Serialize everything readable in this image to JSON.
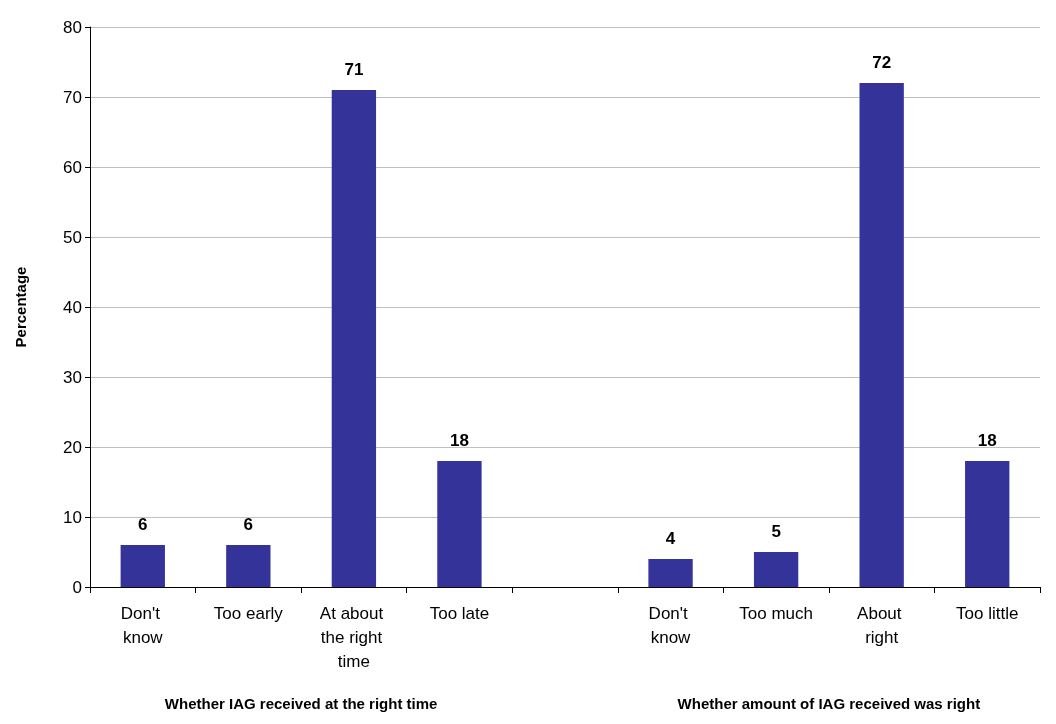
{
  "chart_data": {
    "type": "bar",
    "ylabel": "Percentage",
    "categories": [
      "Don't know",
      "Too early",
      "At about the right time",
      "Too late",
      null,
      "Don't know",
      "Too much",
      "About right",
      "Too little"
    ],
    "values": [
      6,
      6,
      71,
      18,
      null,
      4,
      5,
      72,
      18
    ],
    "color": "#333399",
    "data_labels": true,
    "ylim": [
      0,
      80
    ],
    "yticks": [
      0,
      10,
      20,
      30,
      40,
      50,
      60,
      70,
      80
    ],
    "grid": "y",
    "annotations": [
      "Whether IAG received at the right time",
      "Whether amount of IAG received was right"
    ]
  }
}
